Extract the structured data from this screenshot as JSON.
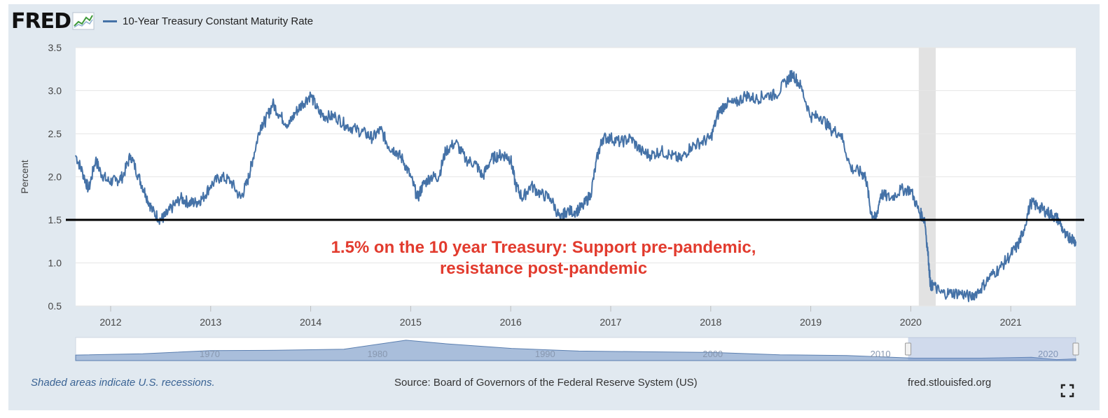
{
  "header": {
    "logo_text": "FRED",
    "logo_icon": "line-chart-icon",
    "legend_label": "10-Year Treasury Constant Maturity Rate"
  },
  "colors": {
    "series": "#4572a7",
    "annotation": "#e23b2e",
    "recession": "#e2e2e2",
    "frame": "#e1e9f0"
  },
  "chart_data": {
    "type": "line",
    "xlabel": "",
    "ylabel": "Percent",
    "ylim": [
      0.5,
      3.5
    ],
    "xlim": [
      2011.65,
      2021.65
    ],
    "y_ticks": [
      "0.5",
      "1.0",
      "1.5",
      "2.0",
      "2.5",
      "3.0",
      "3.5"
    ],
    "x_ticks": [
      "2012",
      "2013",
      "2014",
      "2015",
      "2016",
      "2017",
      "2018",
      "2019",
      "2020",
      "2021"
    ],
    "grid": true,
    "recessions": [
      [
        2020.08,
        2020.25
      ]
    ],
    "reference_line": 1.5,
    "annotation": [
      "1.5% on the 10 year Treasury: Support pre-pandemic,",
      "resistance post-pandemic"
    ],
    "series": [
      {
        "name": "10-Year Treasury Constant Maturity Rate",
        "x": [
          2011.65,
          2011.72,
          2011.78,
          2011.85,
          2011.9,
          2011.97,
          2012.05,
          2012.12,
          2012.2,
          2012.28,
          2012.35,
          2012.42,
          2012.5,
          2012.55,
          2012.62,
          2012.7,
          2012.78,
          2012.85,
          2012.92,
          2013.0,
          2013.1,
          2013.2,
          2013.3,
          2013.37,
          2013.42,
          2013.5,
          2013.55,
          2013.62,
          2013.7,
          2013.78,
          2013.85,
          2013.92,
          2014.0,
          2014.08,
          2014.15,
          2014.25,
          2014.35,
          2014.45,
          2014.55,
          2014.62,
          2014.7,
          2014.78,
          2014.85,
          2014.92,
          2015.0,
          2015.07,
          2015.12,
          2015.2,
          2015.28,
          2015.35,
          2015.45,
          2015.55,
          2015.65,
          2015.72,
          2015.8,
          2015.88,
          2015.95,
          2016.0,
          2016.05,
          2016.12,
          2016.2,
          2016.3,
          2016.4,
          2016.5,
          2016.55,
          2016.65,
          2016.72,
          2016.8,
          2016.87,
          2016.92,
          2017.0,
          2017.1,
          2017.2,
          2017.3,
          2017.4,
          2017.5,
          2017.6,
          2017.7,
          2017.8,
          2017.9,
          2018.0,
          2018.08,
          2018.15,
          2018.25,
          2018.35,
          2018.45,
          2018.55,
          2018.65,
          2018.75,
          2018.82,
          2018.9,
          2019.0,
          2019.1,
          2019.2,
          2019.3,
          2019.4,
          2019.5,
          2019.55,
          2019.6,
          2019.65,
          2019.7,
          2019.8,
          2019.9,
          2020.0,
          2020.08,
          2020.14,
          2020.18,
          2020.2,
          2020.22,
          2020.3,
          2020.4,
          2020.5,
          2020.6,
          2020.7,
          2020.8,
          2020.9,
          2021.0,
          2021.07,
          2021.12,
          2021.2,
          2021.28,
          2021.35,
          2021.42,
          2021.48,
          2021.55,
          2021.6,
          2021.65
        ],
        "y": [
          2.25,
          2.05,
          1.85,
          2.2,
          2.05,
          1.95,
          1.95,
          2.0,
          2.25,
          2.0,
          1.8,
          1.6,
          1.5,
          1.55,
          1.65,
          1.75,
          1.7,
          1.7,
          1.75,
          1.9,
          2.0,
          1.95,
          1.75,
          1.95,
          2.2,
          2.6,
          2.65,
          2.85,
          2.7,
          2.6,
          2.75,
          2.85,
          2.95,
          2.75,
          2.7,
          2.7,
          2.6,
          2.55,
          2.5,
          2.45,
          2.55,
          2.35,
          2.3,
          2.2,
          2.0,
          1.75,
          1.9,
          2.0,
          2.0,
          2.3,
          2.4,
          2.2,
          2.15,
          2.0,
          2.2,
          2.25,
          2.25,
          2.2,
          1.9,
          1.75,
          1.9,
          1.8,
          1.75,
          1.5,
          1.6,
          1.6,
          1.65,
          1.8,
          2.25,
          2.45,
          2.45,
          2.4,
          2.45,
          2.3,
          2.25,
          2.3,
          2.25,
          2.2,
          2.35,
          2.4,
          2.45,
          2.75,
          2.85,
          2.85,
          2.95,
          2.9,
          2.95,
          2.95,
          3.1,
          3.2,
          3.05,
          2.7,
          2.7,
          2.55,
          2.5,
          2.1,
          2.05,
          2.0,
          1.6,
          1.5,
          1.8,
          1.75,
          1.85,
          1.85,
          1.6,
          1.5,
          1.0,
          0.7,
          0.75,
          0.65,
          0.65,
          0.65,
          0.6,
          0.7,
          0.85,
          0.95,
          1.1,
          1.2,
          1.35,
          1.7,
          1.65,
          1.6,
          1.55,
          1.5,
          1.3,
          1.3,
          1.25
        ]
      }
    ],
    "overview_ticks": [
      "1970",
      "1980",
      "1990",
      "2000",
      "2010",
      "2020"
    ]
  },
  "footer": {
    "recession_note": "Shaded areas indicate U.S. recessions.",
    "source": "Source: Board of Governors of the Federal Reserve System (US)",
    "site": "fred.stlouisfed.org",
    "fullscreen_icon": "fullscreen-icon"
  }
}
